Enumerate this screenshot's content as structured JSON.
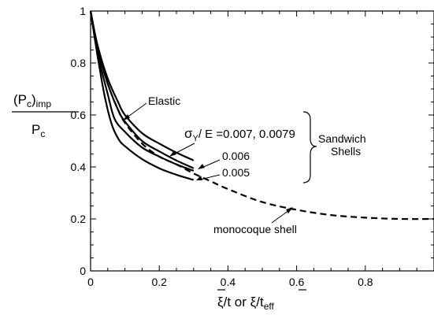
{
  "chart_data": {
    "type": "line",
    "xlabel": "ξ̄/t or ξ̄/t_eff",
    "xlabel_parts": [
      "ξ",
      "/t or ",
      "ξ",
      "/t",
      "eff"
    ],
    "ylabel_parts": [
      "(P",
      "c",
      ")",
      "imp",
      "P",
      "c"
    ],
    "xlim": [
      0,
      1
    ],
    "ylim": [
      0,
      1
    ],
    "xticks": [
      0,
      0.2,
      0.4,
      0.6,
      0.8
    ],
    "xtick_labels": [
      "0",
      "0.2",
      "0.4",
      "0.6",
      "0.8"
    ],
    "yticks": [
      0,
      0.2,
      0.4,
      0.6,
      0.8,
      1
    ],
    "ytick_labels": [
      "0",
      "0.2",
      "0.4",
      "0.6",
      "0.8",
      "1"
    ],
    "grid": false,
    "series": [
      {
        "name": "monocoque shell",
        "style": "dashed",
        "x": [
          0,
          0.02,
          0.05,
          0.08,
          0.1,
          0.15,
          0.2,
          0.25,
          0.3,
          0.35,
          0.4,
          0.5,
          0.6,
          0.7,
          0.8,
          0.9,
          1.0
        ],
        "y": [
          1.0,
          0.86,
          0.72,
          0.62,
          0.57,
          0.49,
          0.44,
          0.41,
          0.375,
          0.345,
          0.315,
          0.265,
          0.235,
          0.215,
          0.205,
          0.2,
          0.2
        ]
      },
      {
        "name": "Elastic",
        "style": "solid",
        "x": [
          0,
          0.02,
          0.05,
          0.08,
          0.1,
          0.15,
          0.2,
          0.25,
          0.3
        ],
        "y": [
          1.0,
          0.87,
          0.74,
          0.65,
          0.6,
          0.53,
          0.49,
          0.455,
          0.425
        ]
      },
      {
        "name": "σY/E=0.007, 0.0079",
        "style": "solid",
        "x": [
          0,
          0.02,
          0.05,
          0.08,
          0.1,
          0.15,
          0.2,
          0.25,
          0.3
        ],
        "y": [
          1.0,
          0.86,
          0.72,
          0.62,
          0.575,
          0.5,
          0.46,
          0.425,
          0.395
        ]
      },
      {
        "name": "0.006",
        "style": "solid",
        "x": [
          0,
          0.02,
          0.05,
          0.07,
          0.1,
          0.15,
          0.2,
          0.25,
          0.3
        ],
        "y": [
          1.0,
          0.84,
          0.68,
          0.585,
          0.535,
          0.475,
          0.44,
          0.41,
          0.385
        ]
      },
      {
        "name": "0.005",
        "style": "solid",
        "x": [
          0,
          0.02,
          0.04,
          0.06,
          0.08,
          0.1,
          0.15,
          0.2,
          0.25,
          0.3
        ],
        "y": [
          1.0,
          0.83,
          0.68,
          0.57,
          0.51,
          0.48,
          0.43,
          0.395,
          0.37,
          0.35
        ]
      }
    ],
    "annotations": {
      "elastic": "Elastic",
      "sigma_sym": "σ",
      "sigma_sub": "Y",
      "sigma_rest": "/ E =0.007, 0.0079",
      "v006": "0.006",
      "v005": "0.005",
      "sandwich1": "Sandwich",
      "sandwich2": "Shells",
      "monocoque": "monocoque shell"
    }
  }
}
